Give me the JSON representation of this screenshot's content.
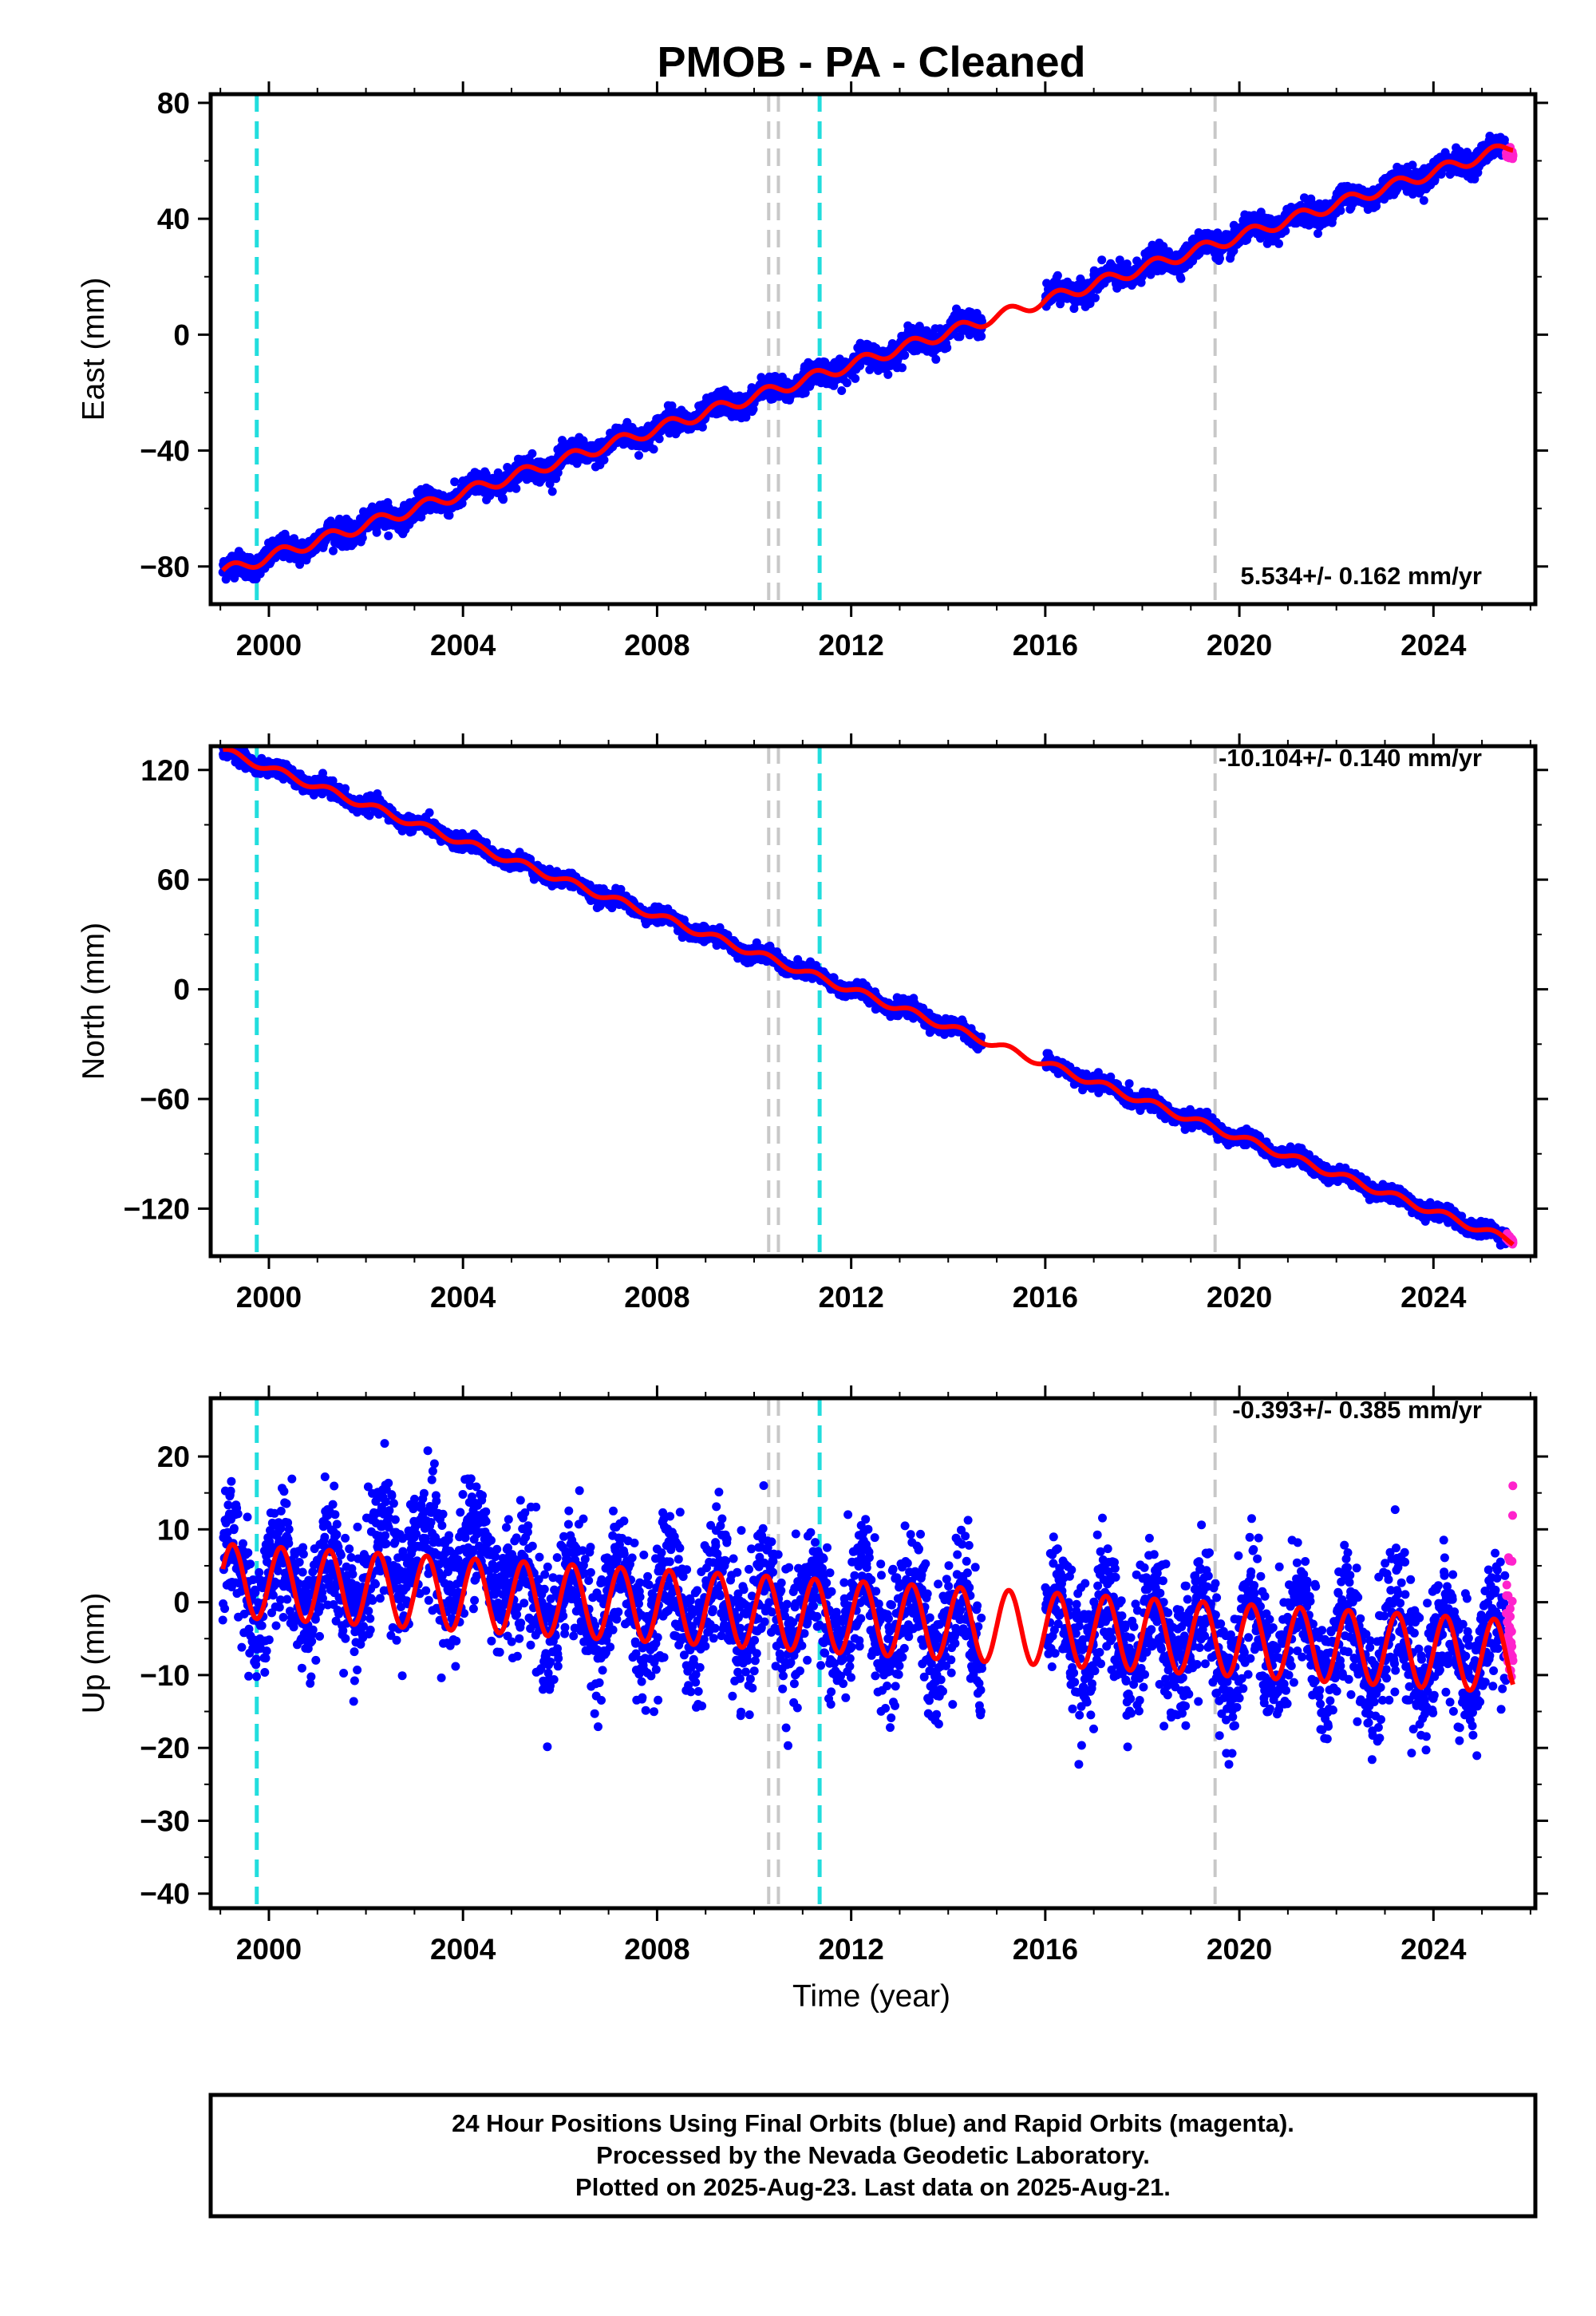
{
  "title": "PMOB  - PA - Cleaned",
  "xlabel": "Time (year)",
  "footer": {
    "line1": "24 Hour Positions Using Final Orbits (blue) and Rapid Orbits (magenta).",
    "line2": "Processed by the Nevada Geodetic Laboratory.",
    "line3": "Plotted on 2025-Aug-23. Last data on 2025-Aug-21."
  },
  "colors": {
    "final": "#0000ff",
    "rapid": "#ff22cc",
    "model": "#ff0000",
    "equipment_change": "#c8c8c8",
    "earthquake": "#22dddd"
  },
  "chart_data": [
    {
      "type": "scatter",
      "component": "east",
      "ylabel": "East (mm)",
      "rate_text": "5.534+/- 0.162 mm/yr",
      "xlim": [
        1998.8,
        2026.1
      ],
      "ylim": [
        -93,
        83
      ],
      "xticks": [
        2000,
        2004,
        2008,
        2012,
        2016,
        2020,
        2024
      ],
      "yticks": [
        -80,
        -40,
        0,
        40,
        80
      ],
      "vlines_equipment": [
        2010.3,
        2010.5,
        2019.5
      ],
      "vlines_earthquake": [
        1999.75,
        2011.35
      ],
      "gap": [
        2014.7,
        2016.0
      ],
      "series": [
        {
          "name": "Final Orbits (blue)",
          "start": 1999.05,
          "end": 2025.5
        },
        {
          "name": "Rapid Orbits (magenta)",
          "start": 2025.5,
          "end": 2025.64
        }
      ],
      "trend": {
        "t0": 1999.05,
        "y0": -82,
        "rate": 5.534
      },
      "seasonal_amplitude": 2,
      "scatter_sd": 2,
      "grid": false
    },
    {
      "type": "scatter",
      "component": "north",
      "ylabel": "North (mm)",
      "rate_text": "-10.104+/- 0.140 mm/yr",
      "xlim": [
        1998.8,
        2026.1
      ],
      "ylim": [
        -146,
        133
      ],
      "xticks": [
        2000,
        2004,
        2008,
        2012,
        2016,
        2020,
        2024
      ],
      "yticks": [
        -120,
        -60,
        0,
        60,
        120
      ],
      "vlines_equipment": [
        2010.3,
        2010.5,
        2019.5
      ],
      "vlines_earthquake": [
        1999.75,
        2011.35
      ],
      "gap": [
        2014.7,
        2016.0
      ],
      "series": [
        {
          "name": "Final Orbits (blue)",
          "start": 1999.05,
          "end": 2025.5
        },
        {
          "name": "Rapid Orbits (magenta)",
          "start": 2025.5,
          "end": 2025.64
        }
      ],
      "trend": {
        "t0": 2000.0,
        "y0": 121,
        "rate": -10.104
      },
      "seasonal_amplitude": 2,
      "scatter_sd": 2,
      "grid": false
    },
    {
      "type": "scatter",
      "component": "up",
      "ylabel": "Up (mm)",
      "rate_text": "-0.393+/- 0.385 mm/yr",
      "xlim": [
        1998.8,
        2026.1
      ],
      "ylim": [
        -42,
        28
      ],
      "xticks": [
        2000,
        2004,
        2008,
        2012,
        2016,
        2020,
        2024
      ],
      "yticks": [
        -40,
        -30,
        -20,
        -10,
        0,
        10,
        20
      ],
      "vlines_equipment": [
        2010.3,
        2010.5,
        2019.5
      ],
      "vlines_earthquake": [
        1999.75,
        2011.35
      ],
      "gap": [
        2014.7,
        2016.0
      ],
      "series": [
        {
          "name": "Final Orbits (blue)",
          "start": 1999.05,
          "end": 2025.5
        },
        {
          "name": "Rapid Orbits (magenta)",
          "start": 2025.5,
          "end": 2025.64
        }
      ],
      "trend": {
        "t0": 1999.05,
        "y0": 3,
        "rate": -0.393
      },
      "seasonal_amplitude": 5,
      "scatter_sd": 4.5,
      "grid": false
    }
  ]
}
